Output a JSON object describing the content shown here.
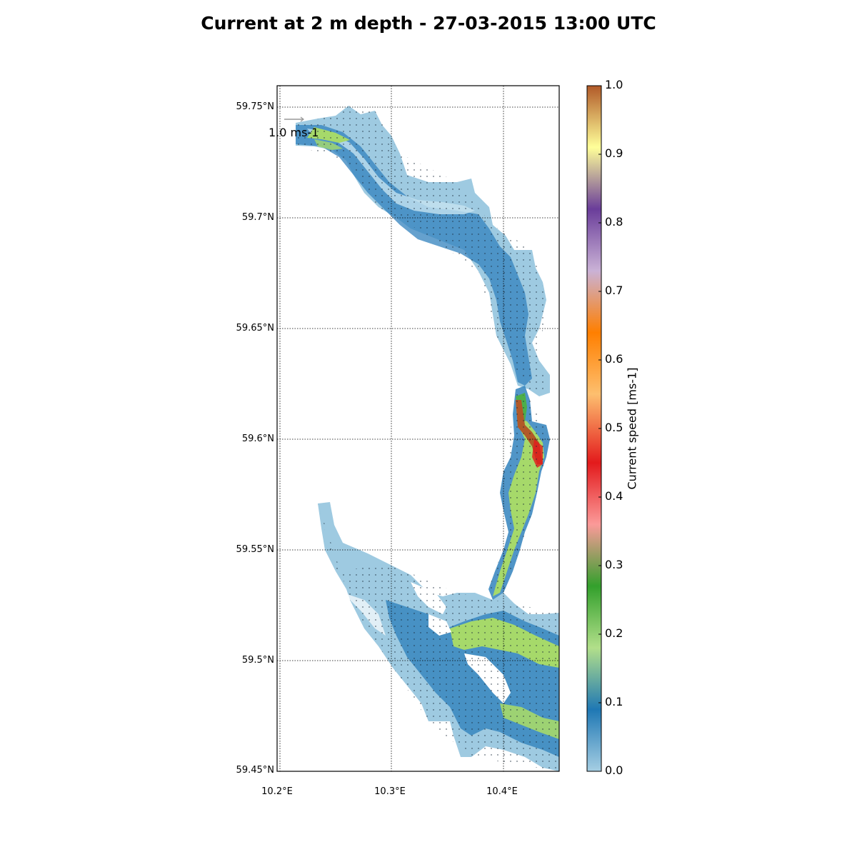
{
  "title": "Current at 2 m depth - 27-03-2015 13:00 UTC",
  "map": {
    "lat_ticks": [
      "59.75°N",
      "59.7°N",
      "59.65°N",
      "59.6°N",
      "59.55°N",
      "59.5°N",
      "59.45°N"
    ],
    "lon_ticks": [
      "10.2°E",
      "10.3°E",
      "10.4°E"
    ],
    "lat_range": [
      59.45,
      59.76
    ],
    "lon_range": [
      10.2,
      10.45
    ],
    "reference_arrow_label": "1.0 ms-1"
  },
  "colorbar": {
    "label": "Current speed [ms-1]",
    "ticks": [
      "0.0",
      "0.1",
      "0.2",
      "0.3",
      "0.4",
      "0.5",
      "0.6",
      "0.7",
      "0.8",
      "0.9",
      "1.0"
    ],
    "range": [
      0.0,
      1.0
    ],
    "colors": [
      "#a6cee3",
      "#1f78b4",
      "#b2df8a",
      "#33a02c",
      "#fb9a99",
      "#e31a1c",
      "#fdbf6f",
      "#ff7f00",
      "#cab2d6",
      "#6a3d9a",
      "#ffff99",
      "#b15928"
    ]
  },
  "colors": {
    "water_low": "#9ecae1",
    "water_mid": "#3182bd",
    "water_fast": "#a6d96a",
    "water_green": "#4daf4a",
    "water_red": "#e31a1c",
    "water_brown": "#b15928"
  }
}
